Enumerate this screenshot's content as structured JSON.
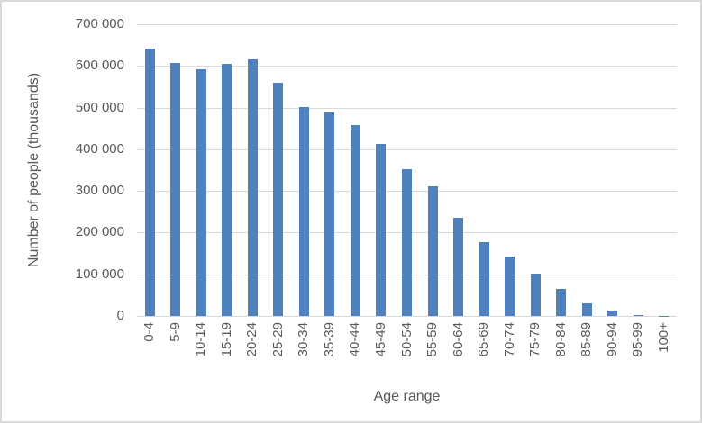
{
  "chart_data": {
    "type": "bar",
    "title": "",
    "xlabel": "Age range",
    "ylabel": "Number of people (thousands)",
    "categories": [
      "0-4",
      "5-9",
      "10-14",
      "15-19",
      "20-24",
      "25-29",
      "30-34",
      "35-39",
      "40-44",
      "45-49",
      "50-54",
      "55-59",
      "60-64",
      "65-69",
      "70-74",
      "75-79",
      "80-84",
      "85-89",
      "90-94",
      "95-99",
      "100+"
    ],
    "values": [
      641000,
      607000,
      593000,
      606000,
      616000,
      560000,
      502000,
      489000,
      458000,
      413000,
      353000,
      311000,
      236000,
      177000,
      143000,
      102000,
      65000,
      31000,
      12000,
      2000,
      1000
    ],
    "ylim": [
      0,
      700000
    ],
    "ytick_step": 100000,
    "ytick_labels": [
      "0",
      "100 000",
      "200 000",
      "300 000",
      "400 000",
      "500 000",
      "600 000",
      "700 000"
    ],
    "grid": true,
    "legend": null,
    "bar_color": "#4e81bd",
    "gridline_color": "#d9d9d9",
    "text_color": "#595959",
    "frame_border_color": "#d9d9d9"
  }
}
